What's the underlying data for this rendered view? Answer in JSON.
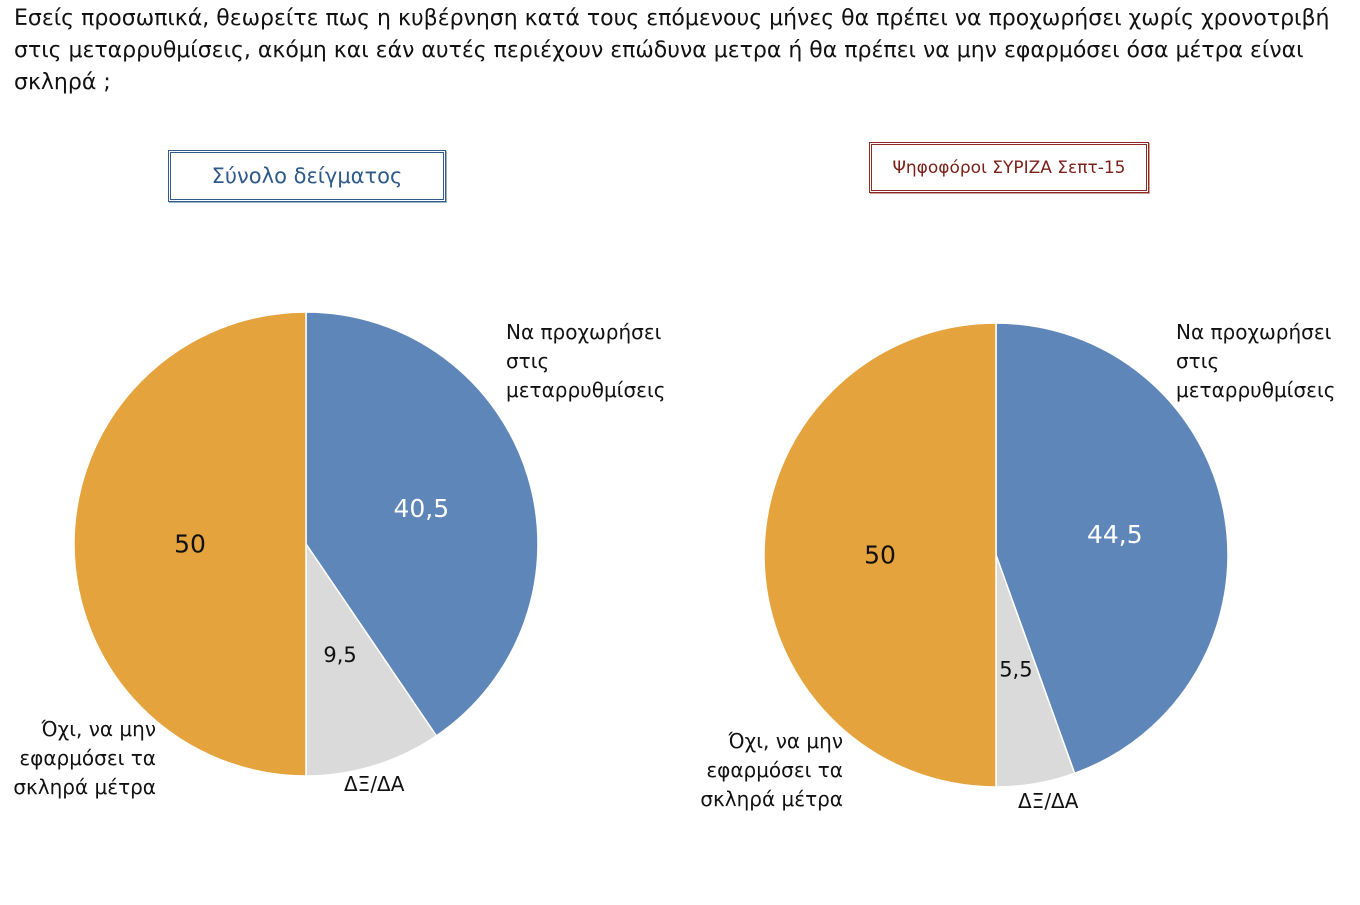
{
  "question": "Εσείς προσωπικά, θεωρείτε πως η κυβέρνηση κατά τους επόμενους μήνες θα πρέπει να προχωρήσει χωρίς χρονοτριβή στις μεταρρυθμίσεις, ακόμη και εάν αυτές περιέχουν επώδυνα μετρα ή θα πρέπει να μην εφαρμόσει όσα μέτρα είναι σκληρά ;",
  "colors": {
    "reform": "#5e86b8",
    "dk": "#dadada",
    "no": "#e5a33d",
    "panel_total": "#2f5a8a",
    "panel_syriza": "#8a2a22"
  },
  "chart_data": [
    {
      "type": "pie",
      "title": "Σύνολο δείγματος",
      "slices": [
        {
          "label": "Να προχωρήσει στις μεταρρυθμίσεις",
          "value": 40.5,
          "display": "40,5"
        },
        {
          "label": "ΔΞ/ΔΑ",
          "value": 9.5,
          "display": "9,5"
        },
        {
          "label": "Όχι, να μην εφαρμόσει τα σκληρά μέτρα",
          "value": 50,
          "display": "50"
        }
      ],
      "category_labels": {
        "reform": [
          "Να προχωρήσει",
          "στις",
          "μεταρρυθμίσεις"
        ],
        "dk": [
          "ΔΞ/ΔΑ"
        ],
        "no": [
          "Όχι, να μην",
          "εφαρμόσει τα",
          "σκληρά μέτρα"
        ]
      }
    },
    {
      "type": "pie",
      "title": "Ψηφοφόροι ΣΥΡΙΖΑ Σεπτ-15",
      "slices": [
        {
          "label": "Να προχωρήσει στις μεταρρυθμίσεις",
          "value": 44.5,
          "display": "44,5"
        },
        {
          "label": "ΔΞ/ΔΑ",
          "value": 5.5,
          "display": "5,5"
        },
        {
          "label": "Όχι, να μην εφαρμόσει τα σκληρά μέτρα",
          "value": 50,
          "display": "50"
        }
      ],
      "category_labels": {
        "reform": [
          "Να προχωρήσει",
          "στις",
          "μεταρρυθμίσεις"
        ],
        "dk": [
          "ΔΞ/ΔΑ"
        ],
        "no": [
          "Όχι, να μην",
          "εφαρμόσει τα",
          "σκληρά μέτρα"
        ]
      }
    }
  ]
}
